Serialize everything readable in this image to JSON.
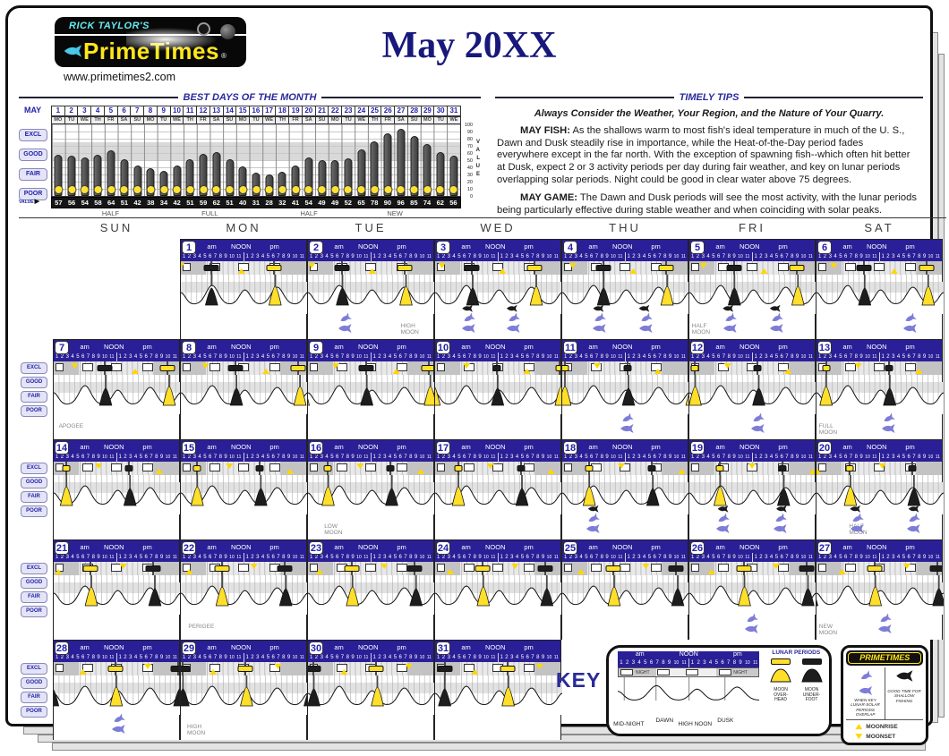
{
  "colors": {
    "navy": "#2a1f96",
    "accent_blue": "#2222aa",
    "yellow": "#ffdf29",
    "lunar_black": "#1d1d1d",
    "fish_purple": "#7d7dd8"
  },
  "brand": {
    "tagline": "RICK TAYLOR'S",
    "name": "PrimeTimes",
    "reg": "®",
    "url": "www.primetimes2.com"
  },
  "page_title": "May 20XX",
  "best_days": {
    "heading": "BEST DAYS OF THE MONTH",
    "month_label": "MAY",
    "value_label": "VALUE",
    "row_labels": [
      "EXCL",
      "GOOD",
      "FAIR",
      "POOR"
    ],
    "axis_ticks": [
      100,
      90,
      80,
      70,
      60,
      50,
      40,
      30,
      20,
      10,
      0
    ],
    "axis_word": "VALUE",
    "days": [
      1,
      2,
      3,
      4,
      5,
      6,
      7,
      8,
      9,
      10,
      11,
      12,
      13,
      14,
      15,
      16,
      17,
      18,
      19,
      20,
      21,
      22,
      23,
      24,
      25,
      26,
      27,
      28,
      29,
      30,
      31
    ],
    "weekdays": [
      "MO",
      "TU",
      "WE",
      "TH",
      "FR",
      "SA",
      "SU",
      "MO",
      "TU",
      "WE",
      "TH",
      "FR",
      "SA",
      "SU",
      "MO",
      "TU",
      "WE",
      "TH",
      "FR",
      "SA",
      "SU",
      "MO",
      "TU",
      "WE",
      "TH",
      "FR",
      "SA",
      "SU",
      "MO",
      "TU",
      "WE"
    ],
    "values": [
      57,
      56,
      54,
      58,
      64,
      51,
      42,
      38,
      34,
      42,
      51,
      59,
      62,
      51,
      40,
      31,
      28,
      32,
      41,
      54,
      49,
      49,
      52,
      65,
      78,
      90,
      96,
      85,
      74,
      62,
      56
    ],
    "phase_labels": [
      {
        "label": "HALF",
        "day": 5
      },
      {
        "label": "FULL",
        "day": 12.5
      },
      {
        "label": "HALF",
        "day": 20
      },
      {
        "label": "NEW",
        "day": 26.5
      }
    ]
  },
  "chart_data": {
    "type": "bar",
    "title": "BEST DAYS OF THE MONTH",
    "categories": [
      1,
      2,
      3,
      4,
      5,
      6,
      7,
      8,
      9,
      10,
      11,
      12,
      13,
      14,
      15,
      16,
      17,
      18,
      19,
      20,
      21,
      22,
      23,
      24,
      25,
      26,
      27,
      28,
      29,
      30,
      31
    ],
    "values": [
      57,
      56,
      54,
      58,
      64,
      51,
      42,
      38,
      34,
      42,
      51,
      59,
      62,
      51,
      40,
      31,
      28,
      32,
      41,
      54,
      49,
      49,
      52,
      65,
      78,
      90,
      96,
      85,
      74,
      62,
      56
    ],
    "xlabel": "MAY",
    "ylabel": "VALUE",
    "ylim": [
      0,
      100
    ],
    "grid": true,
    "band_labels": [
      "EXCL",
      "GOOD",
      "FAIR",
      "POOR"
    ],
    "annotations": [
      "HALF (day 5)",
      "FULL (day 12-13)",
      "HALF (day 20)",
      "NEW (day 26-27)"
    ]
  },
  "tips": {
    "heading": "TIMELY TIPS",
    "intro": "Always Consider the Weather, Your Region, and the Nature of Your Quarry.",
    "paragraphs": [
      {
        "lead": "MAY FISH:",
        "text": " As the shallows warm to most fish's ideal temperature in much of the U. S., Dawn and Dusk steadily rise in importance, while the Heat-of-the-Day period fades everywhere except in the far north.  With the exception of spawning fish--which often hit better at Dusk, expect 2 or 3 activity periods per day during fair weather, and key on lunar periods overlapping solar periods.  Night could be good in clear water above 75 degrees."
      },
      {
        "lead": "MAY GAME:",
        "text": " The Dawn and Dusk periods will see the most activity, with the lunar periods being particularly effective during stable weather and when coinciding with solar peaks."
      }
    ]
  },
  "calendar": {
    "weekday_headers": [
      "SUN",
      "MON",
      "TUE",
      "WED",
      "THU",
      "FRI",
      "SAT"
    ],
    "side_labels": [
      "EXCL",
      "GOOD",
      "FAIR",
      "POOR"
    ],
    "am_label": "am",
    "noon_label": "NOON",
    "pm_label": "pm",
    "hours": [
      "1",
      "2",
      "3",
      "4",
      "5",
      "6",
      "7",
      "8",
      "9",
      "10",
      "11"
    ],
    "days": [
      {
        "d": 1,
        "r": 0,
        "c": 1,
        "oh": 17.8,
        "sz": "w",
        "pf": [],
        "bf": []
      },
      {
        "d": 2,
        "r": 0,
        "c": 2,
        "oh": 18.5,
        "sz": "w",
        "note": "HIGH\nMOON",
        "nx": 0.74,
        "pf": [
          0.3
        ],
        "bf": []
      },
      {
        "d": 3,
        "r": 0,
        "c": 3,
        "oh": 19.1,
        "sz": "w",
        "pf": [
          0.27,
          0.63
        ],
        "bf": [
          0.25,
          0.6
        ]
      },
      {
        "d": 4,
        "r": 0,
        "c": 4,
        "oh": 19.8,
        "sz": "w",
        "pf": [
          0.3,
          0.67
        ],
        "bf": [
          0.28,
          0.64
        ]
      },
      {
        "d": 5,
        "r": 0,
        "c": 5,
        "oh": 20.5,
        "sz": "w",
        "note": "HALF\nMOON",
        "nx": 0.02,
        "pf": [
          0.33,
          0.7
        ],
        "bf": [
          0.3,
          0.67
        ]
      },
      {
        "d": 6,
        "r": 0,
        "c": 6,
        "oh": 21.1,
        "sz": "w",
        "pf": [
          0.75
        ],
        "bf": []
      },
      {
        "d": 7,
        "r": 1,
        "c": 0,
        "oh": 21.8,
        "sz": "w",
        "note": "APOGEE",
        "nx": 0.04,
        "pf": [],
        "bf": []
      },
      {
        "d": 8,
        "r": 1,
        "c": 1,
        "oh": 22.5,
        "sz": "w",
        "pf": [],
        "bf": []
      },
      {
        "d": 9,
        "r": 1,
        "c": 2,
        "oh": 23.1,
        "sz": "w",
        "pf": [],
        "bf": []
      },
      {
        "d": 10,
        "r": 1,
        "c": 3,
        "oh": 23.8,
        "sz": "s",
        "pf": [],
        "bf": []
      },
      {
        "d": 11,
        "r": 1,
        "c": 4,
        "oh": 0.5,
        "sz": "s",
        "pf": [
          0.52
        ],
        "bf": []
      },
      {
        "d": 12,
        "r": 1,
        "c": 5,
        "oh": 1.1,
        "sz": "s",
        "pf": [
          0.55
        ],
        "bf": []
      },
      {
        "d": 13,
        "r": 1,
        "c": 6,
        "oh": 1.8,
        "sz": "s",
        "note": "FULL\nMOON",
        "nx": 0.02,
        "pf": [
          0.58
        ],
        "bf": []
      },
      {
        "d": 14,
        "r": 2,
        "c": 0,
        "oh": 2.4,
        "sz": "s",
        "pf": [],
        "bf": []
      },
      {
        "d": 15,
        "r": 2,
        "c": 1,
        "oh": 3.1,
        "sz": "s",
        "pf": [],
        "bf": []
      },
      {
        "d": 16,
        "r": 2,
        "c": 2,
        "oh": 3.8,
        "sz": "s",
        "note": "LOW\nMOON",
        "nx": 0.13,
        "pf": [],
        "bf": []
      },
      {
        "d": 17,
        "r": 2,
        "c": 3,
        "oh": 4.4,
        "sz": "s",
        "pf": [],
        "bf": []
      },
      {
        "d": 18,
        "r": 2,
        "c": 4,
        "oh": 5.1,
        "sz": "s",
        "pf": [
          0.25
        ],
        "bf": [
          0.24
        ]
      },
      {
        "d": 19,
        "r": 2,
        "c": 5,
        "oh": 5.8,
        "sz": "s",
        "pf": [
          0.27,
          0.73
        ],
        "bf": [
          0.26,
          0.72
        ]
      },
      {
        "d": 20,
        "r": 2,
        "c": 6,
        "oh": 6.4,
        "sz": "s",
        "note": "HALF\nMOON",
        "nx": 0.26,
        "pf": [
          0.33,
          0.78
        ],
        "bf": [
          0.3,
          0.76
        ]
      },
      {
        "d": 21,
        "r": 3,
        "c": 0,
        "oh": 7.1,
        "sz": "w",
        "pf": [],
        "bf": []
      },
      {
        "d": 22,
        "r": 3,
        "c": 1,
        "oh": 7.8,
        "sz": "w",
        "note": "PERIGEE",
        "nx": 0.06,
        "pf": [],
        "bf": []
      },
      {
        "d": 23,
        "r": 3,
        "c": 2,
        "oh": 8.4,
        "sz": "w",
        "pf": [],
        "bf": []
      },
      {
        "d": 24,
        "r": 3,
        "c": 3,
        "oh": 9.1,
        "sz": "w",
        "pf": [],
        "bf": []
      },
      {
        "d": 25,
        "r": 3,
        "c": 4,
        "oh": 9.8,
        "sz": "w",
        "pf": [],
        "bf": []
      },
      {
        "d": 26,
        "r": 3,
        "c": 5,
        "oh": 10.4,
        "sz": "w",
        "pf": [
          0.5
        ],
        "bf": []
      },
      {
        "d": 27,
        "r": 3,
        "c": 6,
        "oh": 11.1,
        "sz": "w",
        "note": "NEW\nMOON",
        "nx": 0.02,
        "pf": [
          0.55
        ],
        "bf": []
      },
      {
        "d": 28,
        "r": 4,
        "c": 0,
        "oh": 11.8,
        "sz": "w",
        "pf": [
          0.52
        ],
        "bf": []
      },
      {
        "d": 29,
        "r": 4,
        "c": 1,
        "oh": 12.4,
        "sz": "w",
        "note": "HIGH\nMOON",
        "nx": 0.05,
        "pf": [],
        "bf": []
      },
      {
        "d": 30,
        "r": 4,
        "c": 2,
        "oh": 13.1,
        "sz": "w",
        "pf": [],
        "bf": []
      },
      {
        "d": 31,
        "r": 4,
        "c": 3,
        "oh": 13.8,
        "sz": "w",
        "pf": [],
        "bf": []
      }
    ]
  },
  "key": {
    "title": "KEY",
    "night": "NIGHT",
    "curve_labels": [
      "MID-NIGHT",
      "DAWN",
      "HIGH NOON",
      "DUSK"
    ],
    "lunar_heading": "LUNAR PERIODS",
    "overhead": "MOON OVER- HEAD",
    "underfoot": "MOON UNDER- FOOT",
    "pt_title": "PRIMETIMES",
    "pt_left": "WHEN KEY LUNAR-SOLAR PERIODS OVERLAP",
    "pt_right": "GOOD TIME FOR SHALLOW FISHING",
    "rise": "MOONRISE",
    "set": "MOONSET"
  }
}
